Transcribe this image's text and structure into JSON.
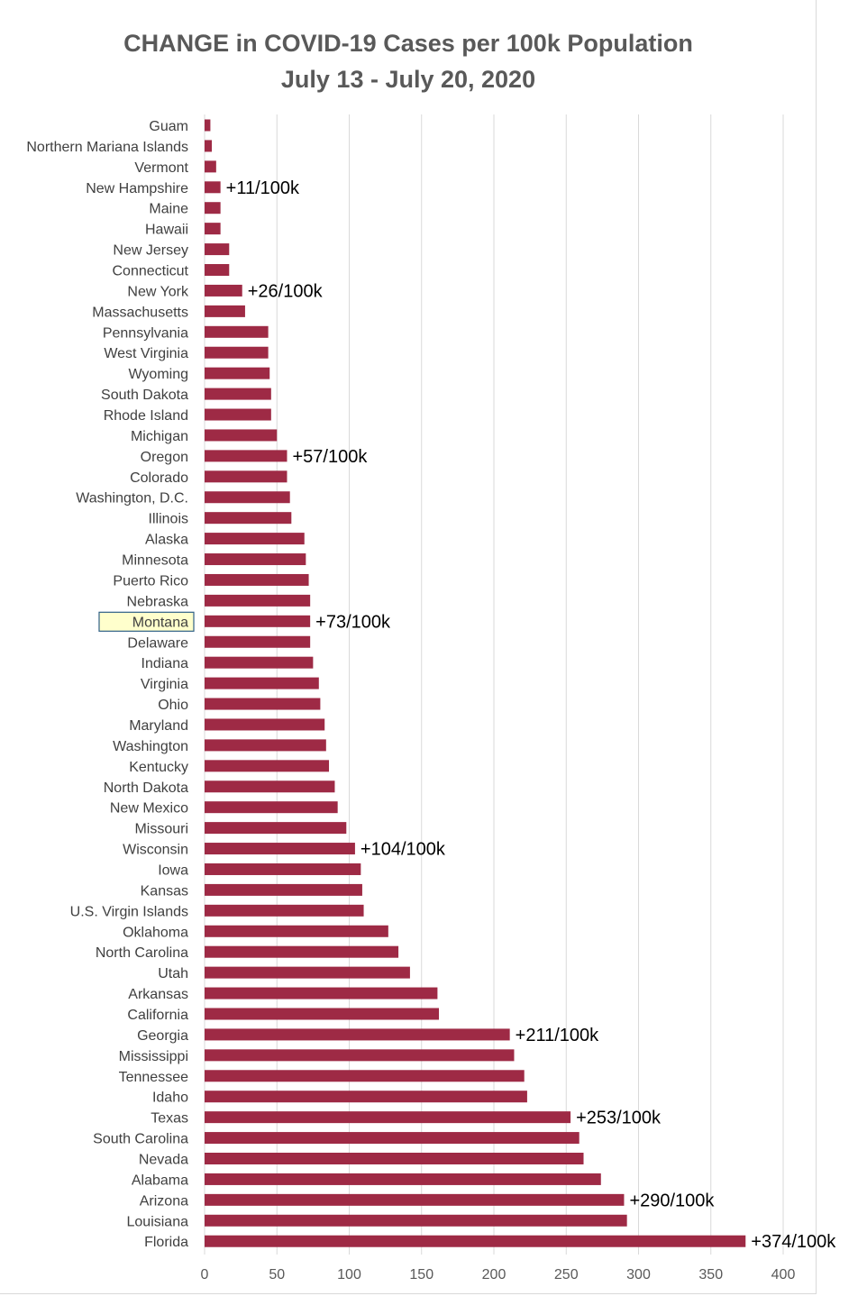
{
  "chart_data": {
    "type": "bar",
    "orientation": "horizontal",
    "title": "CHANGE in COVID-19 Cases per 100k Population",
    "subtitle": "July 13 - July 20, 2020",
    "xlim": [
      0,
      400
    ],
    "x_ticks": [
      "0",
      "50",
      "100",
      "150",
      "200",
      "250",
      "300",
      "350",
      "400"
    ],
    "grid": "vertical",
    "bar_color": "#9e2a45",
    "highlight_category": "Montana",
    "highlight_fill": "#ffffcc",
    "highlight_border": "#2e5f86",
    "categories": [
      "Guam",
      "Northern Mariana Islands",
      "Vermont",
      "New Hampshire",
      "Maine",
      "Hawaii",
      "New Jersey",
      "Connecticut",
      "New York",
      "Massachusetts",
      "Pennsylvania",
      "West Virginia",
      "Wyoming",
      "South Dakota",
      "Rhode Island",
      "Michigan",
      "Oregon",
      "Colorado",
      "Washington, D.C.",
      "Illinois",
      "Alaska",
      "Minnesota",
      "Puerto Rico",
      "Nebraska",
      "Montana",
      "Delaware",
      "Indiana",
      "Virginia",
      "Ohio",
      "Maryland",
      "Washington",
      "Kentucky",
      "North Dakota",
      "New Mexico",
      "Missouri",
      "Wisconsin",
      "Iowa",
      "Kansas",
      "U.S. Virgin Islands",
      "Oklahoma",
      "North Carolina",
      "Utah",
      "Arkansas",
      "California",
      "Georgia",
      "Mississippi",
      "Tennessee",
      "Idaho",
      "Texas",
      "South Carolina",
      "Nevada",
      "Alabama",
      "Arizona",
      "Louisiana",
      "Florida"
    ],
    "values": [
      4,
      5,
      8,
      11,
      11,
      11,
      17,
      17,
      26,
      28,
      44,
      44,
      45,
      46,
      46,
      50,
      57,
      57,
      59,
      60,
      69,
      70,
      72,
      73,
      73,
      73,
      75,
      79,
      80,
      83,
      84,
      86,
      90,
      92,
      98,
      104,
      108,
      109,
      110,
      127,
      134,
      142,
      161,
      162,
      211,
      214,
      221,
      223,
      253,
      259,
      262,
      274,
      290,
      292,
      374
    ],
    "annotations": [
      {
        "category": "New Hampshire",
        "text": "+11/100k"
      },
      {
        "category": "New York",
        "text": "+26/100k"
      },
      {
        "category": "Oregon",
        "text": "+57/100k"
      },
      {
        "category": "Montana",
        "text": "+73/100k"
      },
      {
        "category": "Wisconsin",
        "text": "+104/100k"
      },
      {
        "category": "Georgia",
        "text": "+211/100k"
      },
      {
        "category": "Texas",
        "text": "+253/100k"
      },
      {
        "category": "Arizona",
        "text": "+290/100k"
      },
      {
        "category": "Florida",
        "text": "+374/100k"
      }
    ]
  }
}
